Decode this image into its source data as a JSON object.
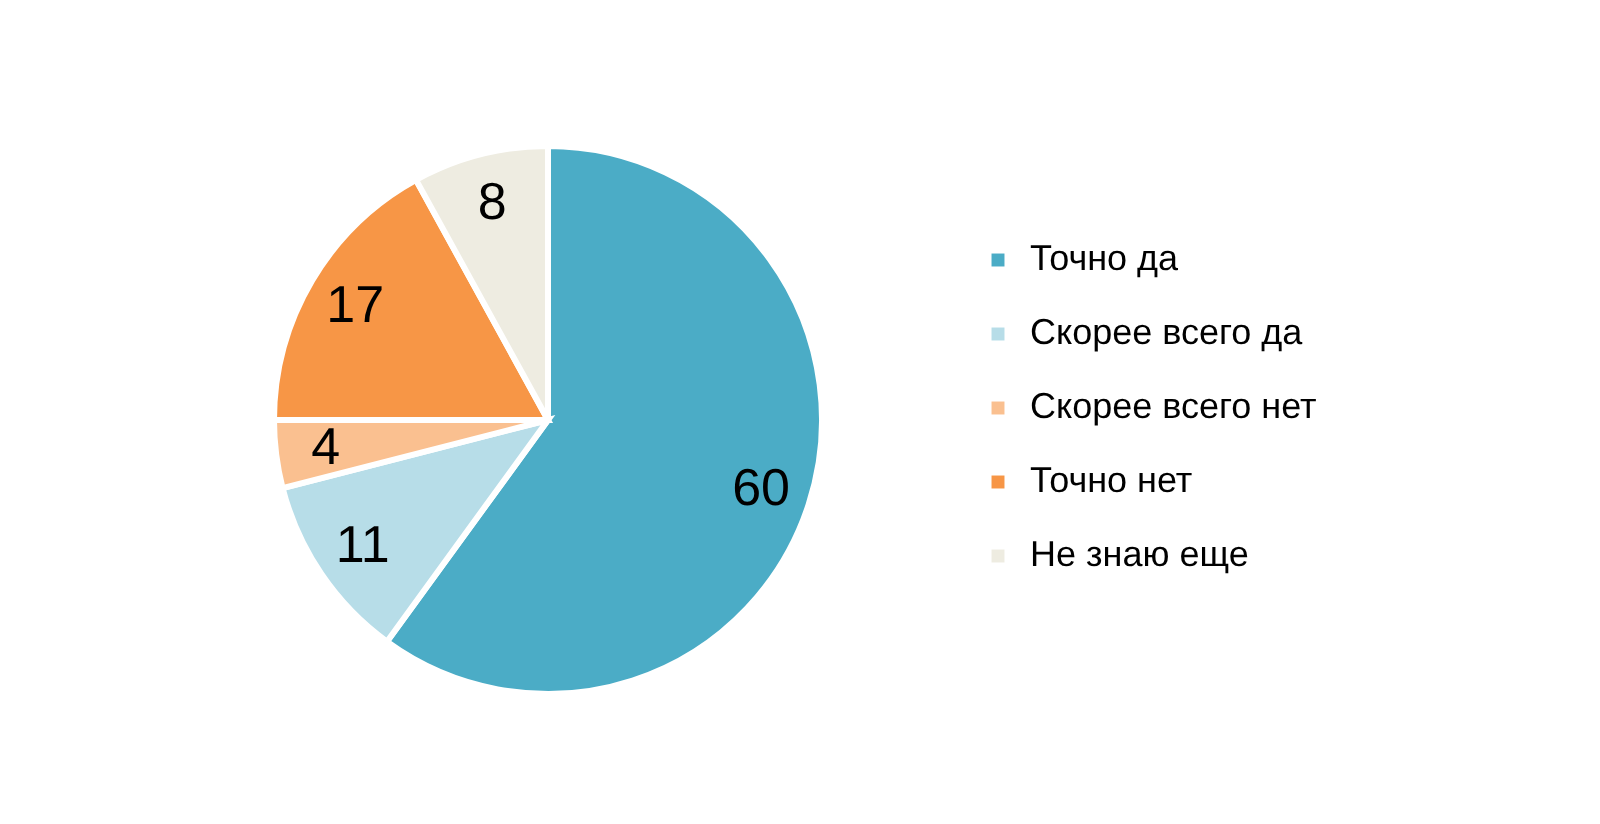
{
  "chart_data": {
    "type": "pie",
    "categories": [
      "Точно да",
      "Скорее всего да",
      "Скорее всего нет",
      "Точно нет",
      "Не знаю еще"
    ],
    "values": [
      60,
      11,
      4,
      17,
      8
    ],
    "colors": [
      "#4bacc6",
      "#b7dde8",
      "#fac090",
      "#f79646",
      "#eeece1"
    ],
    "data_labels": true,
    "legend": "right"
  }
}
